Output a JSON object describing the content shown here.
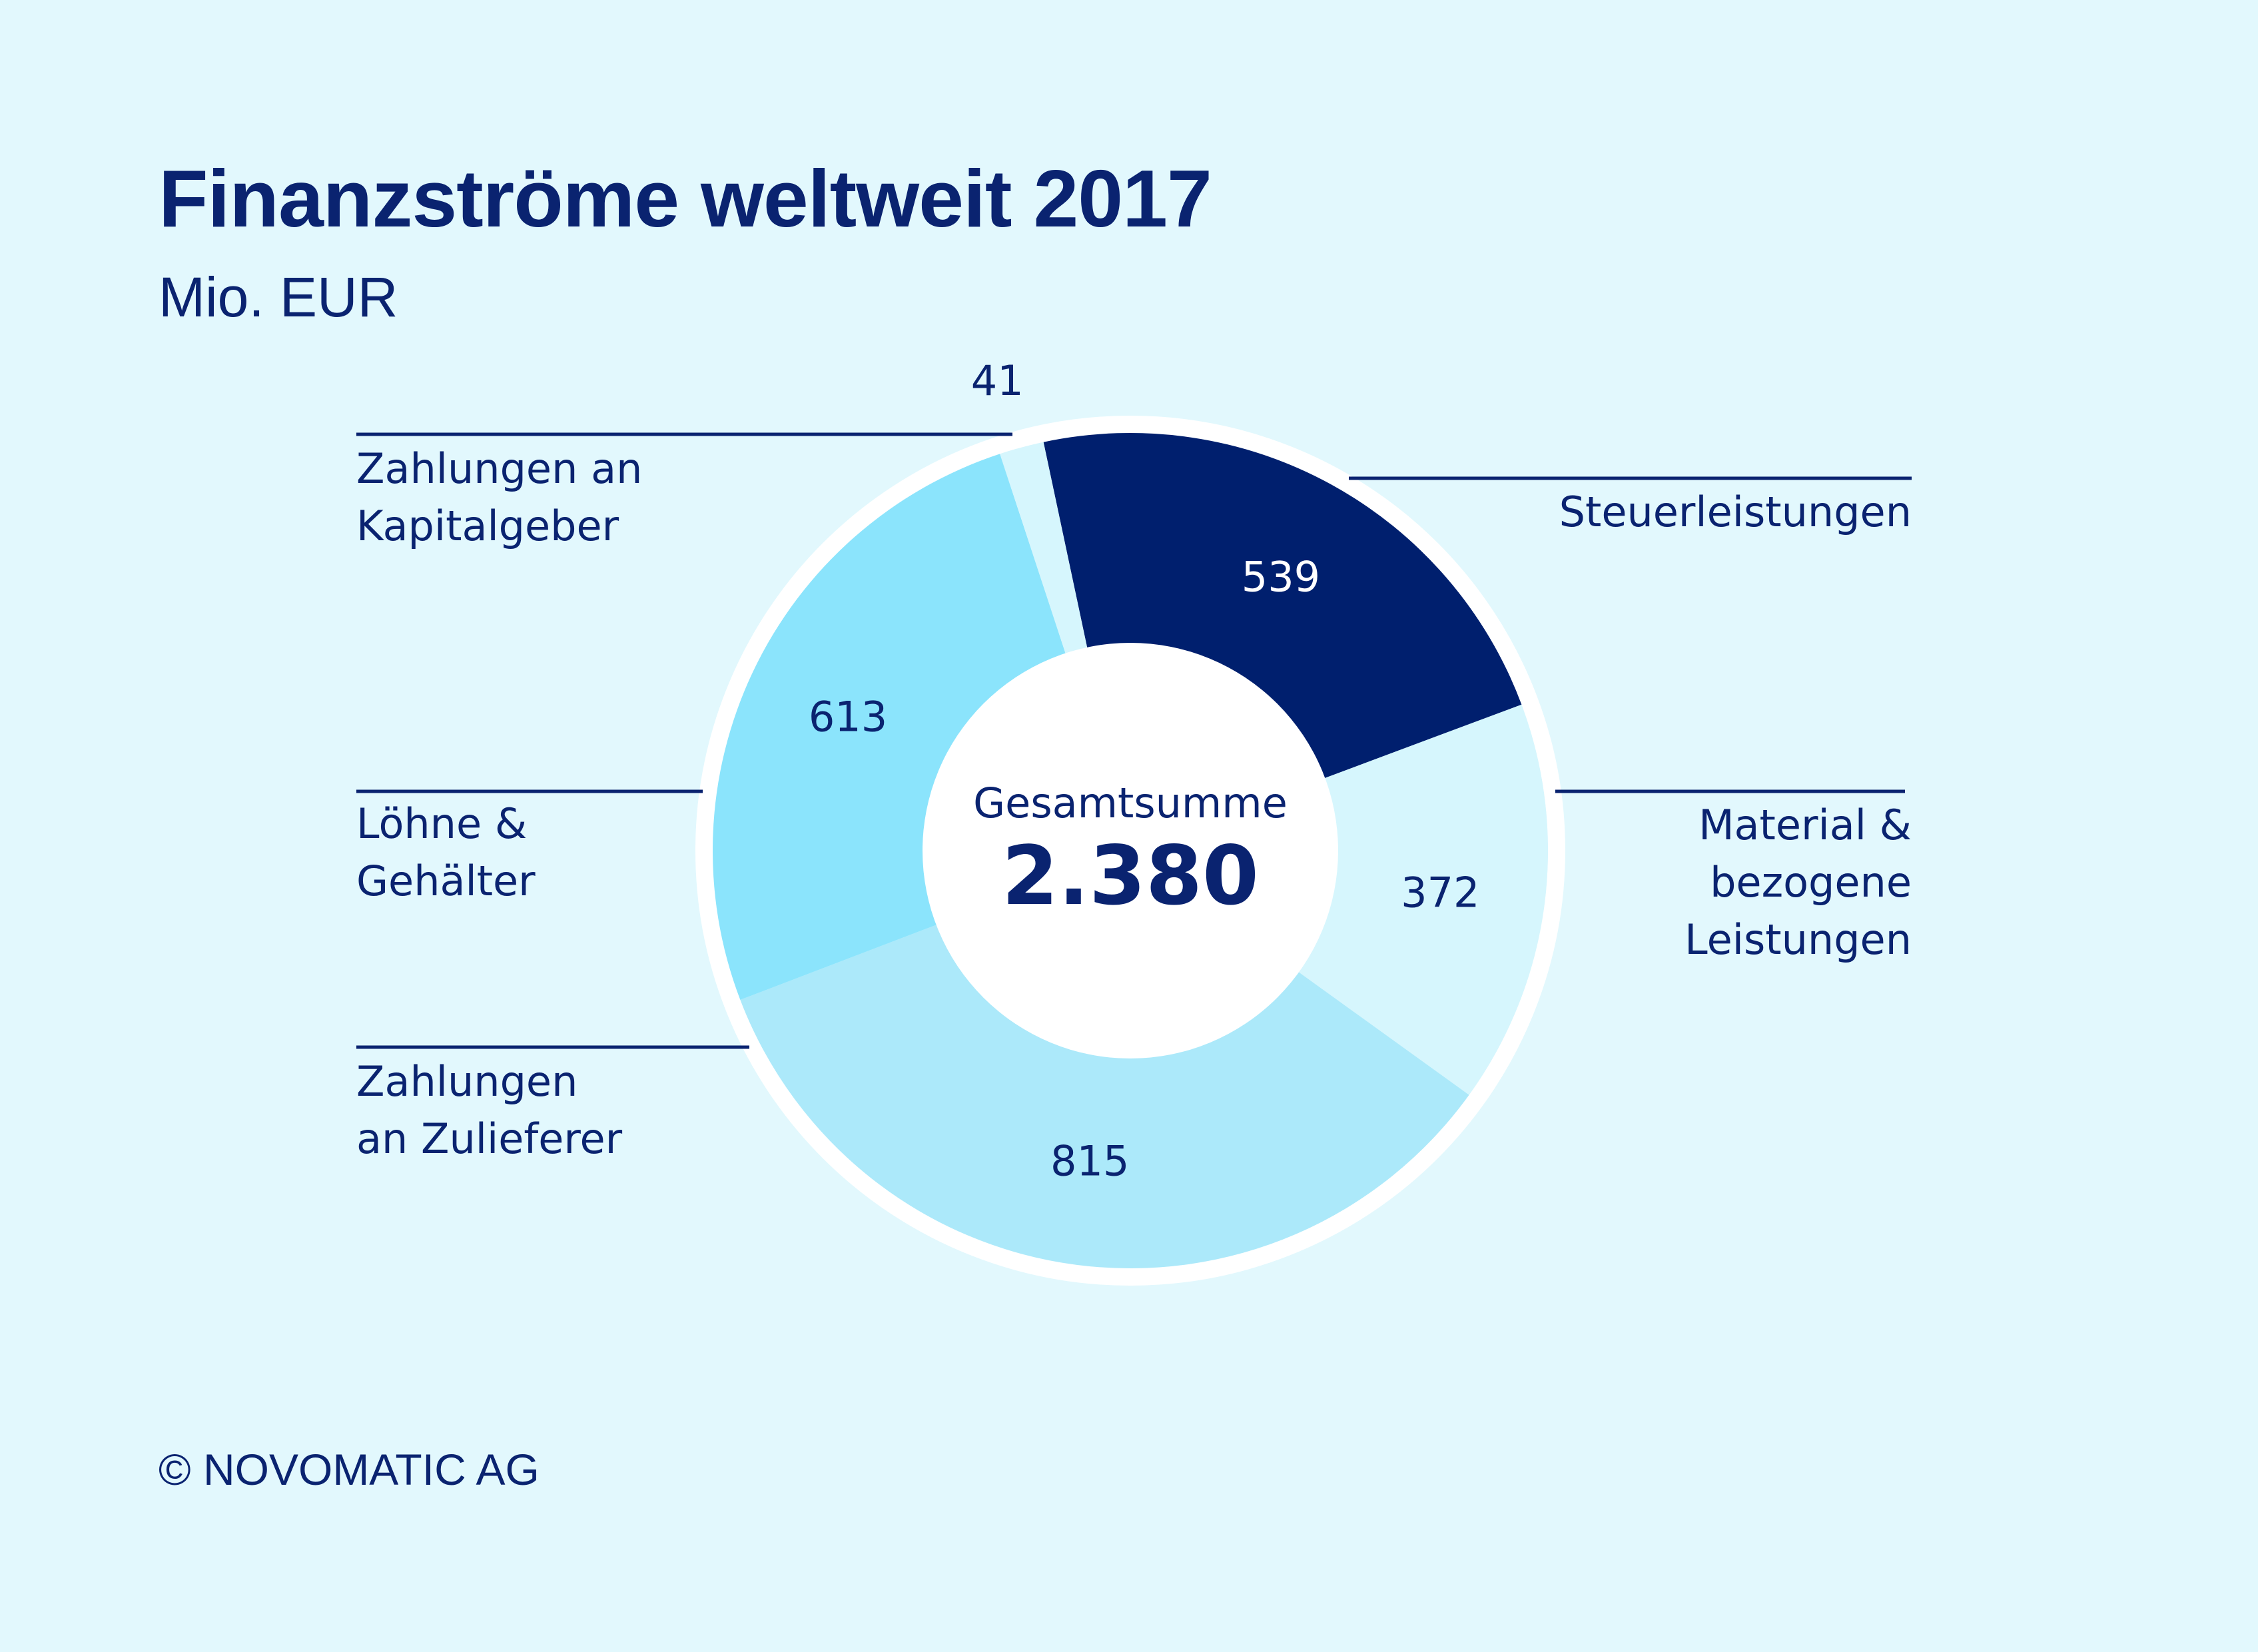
{
  "title": "Finanzströme weltweit 2017",
  "subtitle": "Mio. EUR",
  "copyright": "© NOVOMATIC AG",
  "center": {
    "caption": "Gesamtsumme",
    "total": "2.380"
  },
  "colors": {
    "background": "#e2f8fd",
    "text": "#0a2370",
    "ring": "#ffffff"
  },
  "chart_data": {
    "type": "pie",
    "style": "donut",
    "start_category": "Steuerleistungen",
    "direction": "clockwise",
    "categories": [
      {
        "name": "Steuerleistungen",
        "lines": [
          "Steuerleistungen"
        ],
        "value": 539,
        "value_text": "539",
        "color": "#001f6e",
        "value_color": "#ffffff",
        "label_side": "right"
      },
      {
        "name": "Material & bezogene Leistungen",
        "lines": [
          "Material &",
          "bezogene",
          "Leistungen"
        ],
        "value": 372,
        "value_text": "372",
        "color": "#d6f6fd",
        "value_color": "#0a2370",
        "label_side": "right"
      },
      {
        "name": "Zahlungen an Zulieferer",
        "lines": [
          "Zahlungen",
          "an Zulieferer"
        ],
        "value": 815,
        "value_text": "815",
        "color": "#ace9fa",
        "value_color": "#0a2370",
        "label_side": "left"
      },
      {
        "name": "Löhne & Gehälter",
        "lines": [
          "Löhne &",
          "Gehälter"
        ],
        "value": 613,
        "value_text": "613",
        "color": "#8be4fc",
        "value_color": "#0a2370",
        "label_side": "left"
      },
      {
        "name": "Zahlungen an Kapitalgeber",
        "lines": [
          "Zahlungen an",
          "Kapitalgeber"
        ],
        "value": 41,
        "value_text": "41",
        "color": "#d6f6fd",
        "value_color": "#0a2370",
        "label_side": "left"
      }
    ],
    "total": 2380
  }
}
